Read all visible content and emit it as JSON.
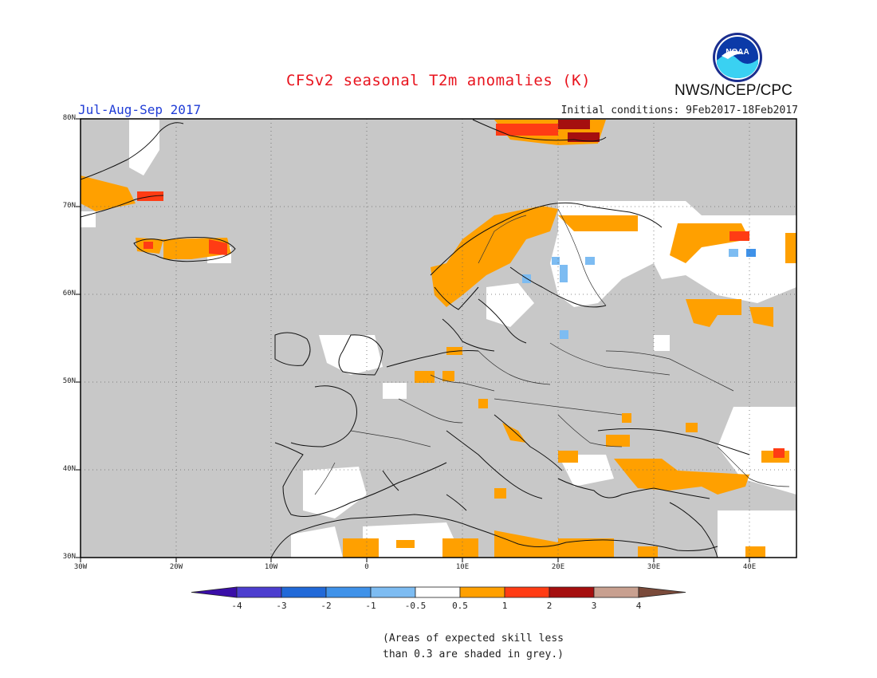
{
  "header": {
    "title": "CFSv2 seasonal T2m anomalies (K)",
    "agency": "NWS/NCEP/CPC",
    "season": "Jul-Aug-Sep 2017",
    "initial_conditions": "Initial conditions: 9Feb2017-18Feb2017",
    "logo_text": "NOAA"
  },
  "map": {
    "lat_range": [
      30,
      80
    ],
    "lon_range": [
      -30,
      45
    ],
    "lat_labels": [
      "80N",
      "70N",
      "60N",
      "50N",
      "40N",
      "30N"
    ],
    "lon_labels": [
      "30W",
      "20W",
      "10W",
      "0",
      "10E",
      "20E",
      "30E",
      "40E"
    ],
    "background_color": "#c8c8c8",
    "grid": "dotted"
  },
  "colorbar": {
    "labels": [
      "-4",
      "-3",
      "-2",
      "-1",
      "-0.5",
      "0.5",
      "1",
      "2",
      "3",
      "4"
    ],
    "colors": [
      "#3a0ea8",
      "#4c3ecf",
      "#2169d8",
      "#3f92e9",
      "#7dbcf2",
      "#ffffff",
      "#ffa000",
      "#ff3c14",
      "#a50f0f",
      "#c8a090",
      "#7a4a3a"
    ]
  },
  "note": {
    "line1": "(Areas of expected skill less",
    "line2": "than 0.3 are shaded in grey.)"
  }
}
